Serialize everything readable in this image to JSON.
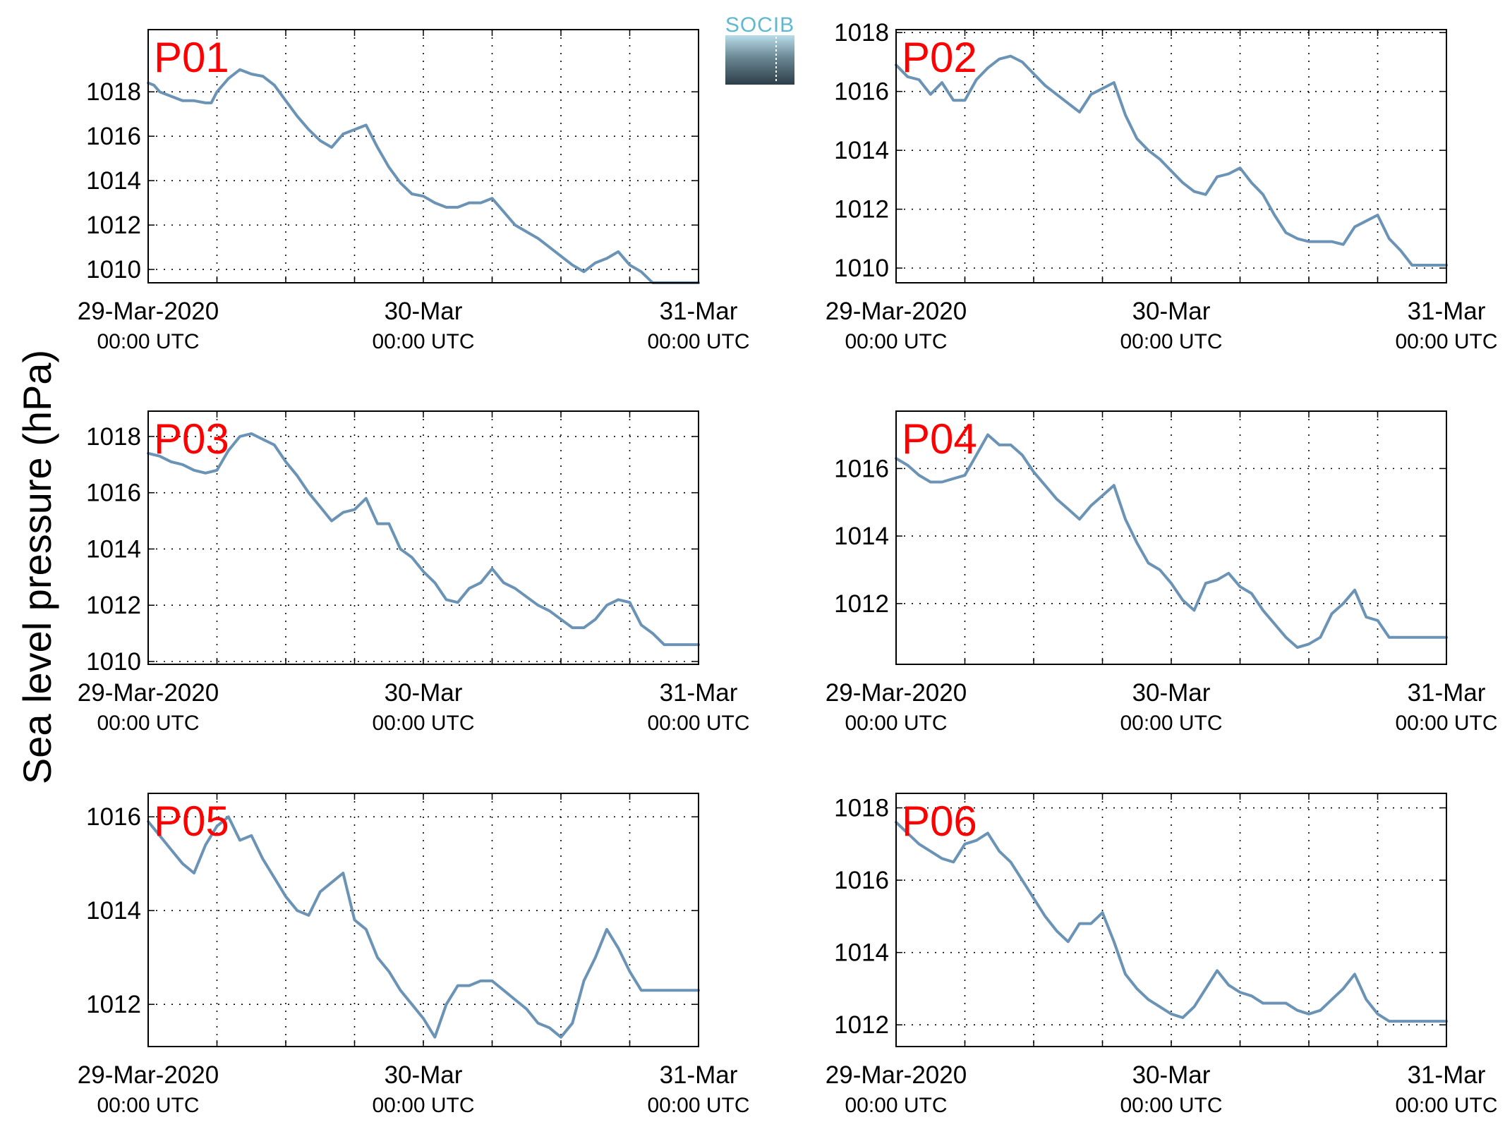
{
  "figure": {
    "ylabel": "Sea level pressure (hPa)",
    "logo_text": "SOCIB",
    "line_color": "#6a93b5",
    "label_color": "#ff0000"
  },
  "chart_data": [
    {
      "type": "line",
      "panel_label": "P01",
      "x_ticks": [
        {
          "main": "29-Mar-2020",
          "sub": "00:00 UTC"
        },
        {
          "main": "30-Mar",
          "sub": "00:00 UTC"
        },
        {
          "main": "31-Mar",
          "sub": "00:00 UTC"
        }
      ],
      "xlim": [
        0,
        48
      ],
      "ylim": [
        1009.4,
        1020.8
      ],
      "yticks": [
        1010,
        1012,
        1014,
        1016,
        1018
      ],
      "grid": true,
      "x": [
        0,
        0.5,
        1,
        2,
        3,
        4,
        5,
        5.5,
        6,
        7,
        8,
        9,
        10,
        11,
        12,
        13,
        14,
        15,
        16,
        17,
        17.5,
        18,
        19,
        20,
        21,
        22,
        23,
        24,
        25,
        26,
        27,
        28,
        29,
        30,
        31,
        32,
        33,
        34,
        35,
        36,
        37,
        38,
        39,
        40,
        41,
        42,
        43,
        44,
        45,
        46,
        47,
        48
      ],
      "y": [
        1018.4,
        1018.3,
        1018.0,
        1017.8,
        1017.6,
        1017.6,
        1017.5,
        1017.5,
        1018.0,
        1018.6,
        1019.0,
        1018.8,
        1018.7,
        1018.3,
        1017.6,
        1016.9,
        1016.3,
        1015.8,
        1015.5,
        1016.1,
        1016.2,
        1016.3,
        1016.5,
        1015.5,
        1014.6,
        1013.9,
        1013.4,
        1013.3,
        1013.0,
        1012.8,
        1012.8,
        1013.0,
        1013.0,
        1013.2,
        1012.6,
        1012.0,
        1011.7,
        1011.4,
        1011.0,
        1010.6,
        1010.2,
        1009.9,
        1010.3,
        1010.5,
        1010.8,
        1010.2,
        1009.9,
        1009.4,
        1009.4,
        1009.4,
        1009.4,
        1009.4
      ]
    },
    {
      "type": "line",
      "panel_label": "P02",
      "x_ticks": [
        {
          "main": "29-Mar-2020",
          "sub": "00:00 UTC"
        },
        {
          "main": "30-Mar",
          "sub": "00:00 UTC"
        },
        {
          "main": "31-Mar",
          "sub": "00:00 UTC"
        }
      ],
      "xlim": [
        0,
        48
      ],
      "ylim": [
        1009.5,
        1018.1
      ],
      "yticks": [
        1010,
        1012,
        1014,
        1016,
        1018
      ],
      "grid": true,
      "x": [
        0,
        1,
        2,
        3,
        4,
        5,
        6,
        7,
        8,
        9,
        10,
        11,
        12,
        13,
        14,
        15,
        16,
        17,
        18,
        19,
        20,
        21,
        22,
        23,
        24,
        25,
        26,
        27,
        28,
        29,
        30,
        31,
        32,
        33,
        34,
        35,
        36,
        37,
        38,
        39,
        40,
        41,
        42,
        43,
        44,
        45,
        46,
        47,
        48
      ],
      "y": [
        1016.9,
        1016.5,
        1016.4,
        1015.9,
        1016.3,
        1015.7,
        1015.7,
        1016.4,
        1016.8,
        1017.1,
        1017.2,
        1017.0,
        1016.6,
        1016.2,
        1015.9,
        1015.6,
        1015.3,
        1015.9,
        1016.1,
        1016.3,
        1015.2,
        1014.4,
        1014.0,
        1013.7,
        1013.3,
        1012.9,
        1012.6,
        1012.5,
        1013.1,
        1013.2,
        1013.4,
        1012.9,
        1012.5,
        1011.8,
        1011.2,
        1011.0,
        1010.9,
        1010.9,
        1010.9,
        1010.8,
        1011.4,
        1011.6,
        1011.8,
        1011.0,
        1010.6,
        1010.1,
        1010.1,
        1010.1,
        1010.1
      ]
    },
    {
      "type": "line",
      "panel_label": "P03",
      "x_ticks": [
        {
          "main": "29-Mar-2020",
          "sub": "00:00 UTC"
        },
        {
          "main": "30-Mar",
          "sub": "00:00 UTC"
        },
        {
          "main": "31-Mar",
          "sub": "00:00 UTC"
        }
      ],
      "xlim": [
        0,
        48
      ],
      "ylim": [
        1009.9,
        1018.9
      ],
      "yticks": [
        1010,
        1012,
        1014,
        1016,
        1018
      ],
      "grid": true,
      "x": [
        0,
        1,
        2,
        3,
        4,
        5,
        6,
        7,
        8,
        9,
        10,
        11,
        12,
        13,
        14,
        15,
        16,
        17,
        18,
        19,
        20,
        21,
        22,
        23,
        24,
        25,
        26,
        27,
        28,
        29,
        30,
        31,
        32,
        33,
        34,
        35,
        36,
        37,
        38,
        39,
        40,
        41,
        42,
        43,
        44,
        45,
        46,
        47,
        48
      ],
      "y": [
        1017.4,
        1017.3,
        1017.1,
        1017.0,
        1016.8,
        1016.7,
        1016.8,
        1017.5,
        1018.0,
        1018.1,
        1017.9,
        1017.7,
        1017.1,
        1016.6,
        1016.0,
        1015.5,
        1015.0,
        1015.3,
        1015.4,
        1015.8,
        1014.9,
        1014.9,
        1014.0,
        1013.7,
        1013.2,
        1012.8,
        1012.2,
        1012.1,
        1012.6,
        1012.8,
        1013.3,
        1012.8,
        1012.6,
        1012.3,
        1012.0,
        1011.8,
        1011.5,
        1011.2,
        1011.2,
        1011.5,
        1012.0,
        1012.2,
        1012.1,
        1011.3,
        1011.0,
        1010.6,
        1010.6,
        1010.6,
        1010.6
      ]
    },
    {
      "type": "line",
      "panel_label": "P04",
      "x_ticks": [
        {
          "main": "29-Mar-2020",
          "sub": "00:00 UTC"
        },
        {
          "main": "30-Mar",
          "sub": "00:00 UTC"
        },
        {
          "main": "31-Mar",
          "sub": "00:00 UTC"
        }
      ],
      "xlim": [
        0,
        48
      ],
      "ylim": [
        1010.2,
        1017.7
      ],
      "yticks": [
        1012,
        1014,
        1016
      ],
      "grid": true,
      "x": [
        0,
        1,
        2,
        3,
        4,
        5,
        6,
        7,
        8,
        9,
        10,
        11,
        12,
        13,
        14,
        15,
        16,
        17,
        18,
        19,
        20,
        21,
        22,
        23,
        24,
        25,
        26,
        27,
        28,
        29,
        30,
        31,
        32,
        33,
        34,
        35,
        36,
        37,
        38,
        39,
        40,
        41,
        42,
        43,
        44,
        45,
        46,
        47,
        48
      ],
      "y": [
        1016.3,
        1016.1,
        1015.8,
        1015.6,
        1015.6,
        1015.7,
        1015.8,
        1016.4,
        1017.0,
        1016.7,
        1016.7,
        1016.4,
        1015.9,
        1015.5,
        1015.1,
        1014.8,
        1014.5,
        1014.9,
        1015.2,
        1015.5,
        1014.5,
        1013.8,
        1013.2,
        1013.0,
        1012.6,
        1012.1,
        1011.8,
        1012.6,
        1012.7,
        1012.9,
        1012.5,
        1012.3,
        1011.8,
        1011.4,
        1011.0,
        1010.7,
        1010.8,
        1011.0,
        1011.7,
        1012.0,
        1012.4,
        1011.6,
        1011.5,
        1011.0,
        1011.0,
        1011.0,
        1011.0,
        1011.0,
        1011.0
      ]
    },
    {
      "type": "line",
      "panel_label": "P05",
      "x_ticks": [
        {
          "main": "29-Mar-2020",
          "sub": "00:00 UTC"
        },
        {
          "main": "30-Mar",
          "sub": "00:00 UTC"
        },
        {
          "main": "31-Mar",
          "sub": "00:00 UTC"
        }
      ],
      "xlim": [
        0,
        48
      ],
      "ylim": [
        1011.1,
        1016.5
      ],
      "yticks": [
        1012,
        1014,
        1016
      ],
      "grid": true,
      "x": [
        0,
        1,
        2,
        3,
        4,
        5,
        6,
        7,
        8,
        9,
        10,
        11,
        12,
        13,
        14,
        15,
        16,
        17,
        18,
        19,
        20,
        21,
        22,
        23,
        24,
        25,
        26,
        27,
        28,
        29,
        30,
        31,
        32,
        33,
        34,
        35,
        36,
        37,
        38,
        39,
        40,
        41,
        42,
        43,
        44,
        45,
        46,
        47,
        48
      ],
      "y": [
        1015.9,
        1015.6,
        1015.3,
        1015.0,
        1014.8,
        1015.4,
        1015.8,
        1016.0,
        1015.5,
        1015.6,
        1015.1,
        1014.7,
        1014.3,
        1014.0,
        1013.9,
        1014.4,
        1014.6,
        1014.8,
        1013.8,
        1013.6,
        1013.0,
        1012.7,
        1012.3,
        1012.0,
        1011.7,
        1011.3,
        1012.0,
        1012.4,
        1012.4,
        1012.5,
        1012.5,
        1012.3,
        1012.1,
        1011.9,
        1011.6,
        1011.5,
        1011.3,
        1011.6,
        1012.5,
        1013.0,
        1013.6,
        1013.2,
        1012.7,
        1012.3,
        1012.3,
        1012.3,
        1012.3,
        1012.3,
        1012.3
      ]
    },
    {
      "type": "line",
      "panel_label": "P06",
      "x_ticks": [
        {
          "main": "29-Mar-2020",
          "sub": "00:00 UTC"
        },
        {
          "main": "30-Mar",
          "sub": "00:00 UTC"
        },
        {
          "main": "31-Mar",
          "sub": "00:00 UTC"
        }
      ],
      "xlim": [
        0,
        48
      ],
      "ylim": [
        1011.4,
        1018.4
      ],
      "yticks": [
        1012,
        1014,
        1016,
        1018
      ],
      "grid": true,
      "x": [
        0,
        1,
        2,
        3,
        4,
        5,
        6,
        7,
        8,
        9,
        10,
        11,
        12,
        13,
        14,
        15,
        16,
        17,
        18,
        19,
        20,
        21,
        22,
        23,
        24,
        25,
        26,
        27,
        28,
        29,
        30,
        31,
        32,
        33,
        34,
        35,
        36,
        37,
        38,
        39,
        40,
        41,
        42,
        43,
        44,
        45,
        46,
        47,
        48
      ],
      "y": [
        1017.6,
        1017.3,
        1017.0,
        1016.8,
        1016.6,
        1016.5,
        1017.0,
        1017.1,
        1017.3,
        1016.8,
        1016.5,
        1016.0,
        1015.5,
        1015.0,
        1014.6,
        1014.3,
        1014.8,
        1014.8,
        1015.1,
        1014.3,
        1013.4,
        1013.0,
        1012.7,
        1012.5,
        1012.3,
        1012.2,
        1012.5,
        1013.0,
        1013.5,
        1013.1,
        1012.9,
        1012.8,
        1012.6,
        1012.6,
        1012.6,
        1012.4,
        1012.3,
        1012.4,
        1012.7,
        1013.0,
        1013.4,
        1012.7,
        1012.3,
        1012.1,
        1012.1,
        1012.1,
        1012.1,
        1012.1,
        1012.1
      ]
    }
  ]
}
